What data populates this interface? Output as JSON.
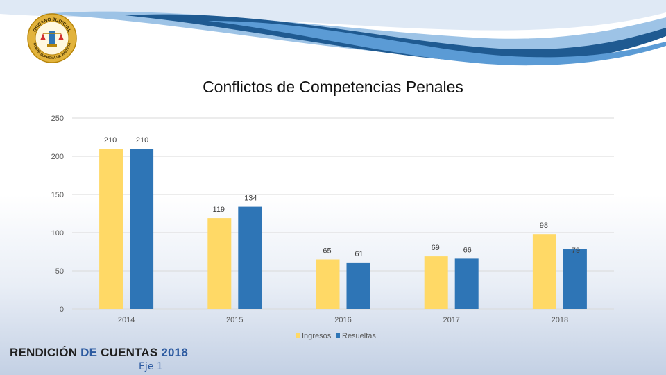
{
  "logo": {
    "text_top": "ÓRGANO JUDICIAL",
    "text_bottom": "CORTE SUPREMA DE JUSTICIA"
  },
  "footer": {
    "title_part1": "RENDICIÓN",
    "title_part2": "DE",
    "title_part3": "CUENTAS",
    "title_part4": "2018",
    "subtitle": "Eje 1"
  },
  "colors": {
    "ingresos": "#FFD966",
    "resueltas": "#2E75B6",
    "wave_dark": "#1F5A91",
    "wave_light": "#9DC3E6"
  },
  "chart_data": {
    "type": "bar",
    "title": "Conflictos de Competencias Penales",
    "categories": [
      "2014",
      "2015",
      "2016",
      "2017",
      "2018"
    ],
    "series": [
      {
        "name": "Ingresos",
        "values": [
          210,
          119,
          65,
          69,
          98
        ]
      },
      {
        "name": "Resueltas",
        "values": [
          210,
          134,
          61,
          66,
          79
        ]
      }
    ],
    "ylim": [
      0,
      250
    ],
    "yticks": [
      0,
      50,
      100,
      150,
      200,
      250
    ],
    "grid": true,
    "legend": "bottom"
  }
}
